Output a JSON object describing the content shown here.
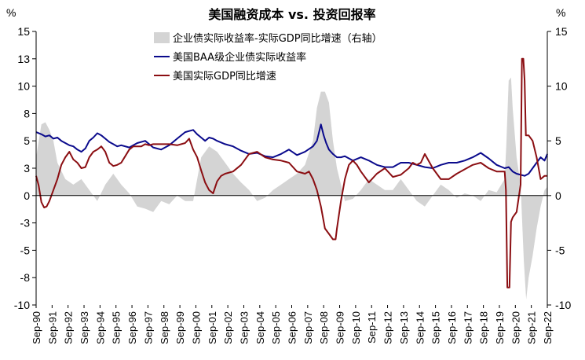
{
  "chart_data": {
    "type": "line",
    "title": "美国融资成本 vs. 投资回报率",
    "ylabel_left": "%",
    "ylabel_right": "%",
    "ylim_left": [
      -10,
      15
    ],
    "ylim_right": [
      -10,
      15
    ],
    "yticks_left": [
      {
        "value": 15,
        "label": "15"
      },
      {
        "value": 12.5,
        "label": "13"
      },
      {
        "value": 10,
        "label": "10"
      },
      {
        "value": 7.5,
        "label": "8"
      },
      {
        "value": 5,
        "label": "5"
      },
      {
        "value": 2.5,
        "label": "3"
      },
      {
        "value": 0,
        "label": "0"
      },
      {
        "value": -2.5,
        "label": "-3"
      },
      {
        "value": -5,
        "label": "-5"
      },
      {
        "value": -7.5,
        "label": "-8"
      },
      {
        "value": -10,
        "label": "-10"
      }
    ],
    "yticks_right": [
      {
        "value": 15,
        "label": "15"
      },
      {
        "value": 10,
        "label": "10"
      },
      {
        "value": 5,
        "label": "5"
      },
      {
        "value": 0,
        "label": "0"
      },
      {
        "value": -5,
        "label": "-5"
      },
      {
        "value": -10,
        "label": "-10"
      }
    ],
    "x_start": 1990.67,
    "x_end": 2022.67,
    "x_labels": [
      "Sep-90",
      "Sep-91",
      "Sep-92",
      "Sep-93",
      "Sep-94",
      "Sep-95",
      "Sep-96",
      "Sep-97",
      "Sep-98",
      "Sep-99",
      "Sep-00",
      "Sep-01",
      "Sep-02",
      "Sep-03",
      "Sep-04",
      "Sep-05",
      "Sep-06",
      "Sep-07",
      "Sep-08",
      "Sep-09",
      "Sep-10",
      "Sep-11",
      "Sep-12",
      "Sep-13",
      "Sep-14",
      "Sep-15",
      "Sep-16",
      "Sep-17",
      "Sep-18",
      "Sep-19",
      "Sep-20",
      "Sep-21",
      "Sep-22"
    ],
    "legend": [
      {
        "name": "企业债实际收益率-实际GDP同比增速（右轴）",
        "style": "area",
        "color": "#d4d4d4"
      },
      {
        "name": "美国BAA级企业债实际收益率",
        "style": "line",
        "color": "#0a0a8c"
      },
      {
        "name": "美国实际GDP同比增速",
        "style": "line",
        "color": "#8b0e12"
      }
    ],
    "series": [
      {
        "name": "企业债实际收益率-实际GDP同比增速（右轴）",
        "type": "area",
        "axis": "right",
        "color": "#d4d4d4",
        "x": [
          1990.67,
          1991.0,
          1991.25,
          1991.5,
          1991.75,
          1992.0,
          1992.5,
          1993.0,
          1993.5,
          1994.0,
          1994.5,
          1995.0,
          1995.5,
          1996.0,
          1996.5,
          1997.0,
          1997.5,
          1998.0,
          1998.5,
          1999.0,
          1999.5,
          2000.0,
          2000.5,
          2001.0,
          2001.5,
          2002.0,
          2002.5,
          2003.0,
          2003.5,
          2004.0,
          2004.5,
          2005.0,
          2005.5,
          2006.0,
          2006.5,
          2007.0,
          2007.5,
          2008.0,
          2008.25,
          2008.5,
          2008.75,
          2009.0,
          2009.25,
          2009.5,
          2009.75,
          2010.0,
          2010.5,
          2011.0,
          2011.5,
          2012.0,
          2012.5,
          2013.0,
          2013.5,
          2014.0,
          2014.5,
          2015.0,
          2015.5,
          2016.0,
          2016.5,
          2017.0,
          2017.5,
          2018.0,
          2018.5,
          2019.0,
          2019.5,
          2020.0,
          2020.1,
          2020.25,
          2020.4,
          2020.5,
          2020.75,
          2021.0,
          2021.2,
          2021.35,
          2021.5,
          2021.75,
          2022.0,
          2022.25,
          2022.5,
          2022.67
        ],
        "values": [
          3.5,
          6.5,
          6.7,
          6.0,
          5.0,
          3.0,
          1.5,
          1.0,
          1.5,
          0.5,
          -0.5,
          1.0,
          2.0,
          1.0,
          0.2,
          -1.0,
          -1.2,
          -1.5,
          -0.5,
          -0.8,
          0.0,
          -0.5,
          -0.5,
          3.5,
          4.5,
          4.0,
          3.0,
          2.0,
          1.2,
          0.5,
          -0.5,
          -0.2,
          0.5,
          1.0,
          1.5,
          2.0,
          2.8,
          5.0,
          8.0,
          9.5,
          9.5,
          8.5,
          5.0,
          2.5,
          1.0,
          -0.5,
          -0.3,
          0.5,
          1.5,
          1.0,
          0.5,
          0.5,
          1.5,
          0.5,
          -0.5,
          -1.0,
          0.0,
          1.0,
          0.5,
          -0.2,
          0.2,
          0.0,
          -0.5,
          0.5,
          0.3,
          1.5,
          4.5,
          10.5,
          10.8,
          8.0,
          3.5,
          1.0,
          -6.0,
          -9.5,
          -7.5,
          -5.5,
          -3.0,
          -1.0,
          0.5,
          0.8
        ]
      },
      {
        "name": "美国BAA级企业债实际收益率",
        "type": "line",
        "axis": "left",
        "color": "#0a0a8c",
        "x": [
          1990.67,
          1991.0,
          1991.25,
          1991.5,
          1991.75,
          1992.0,
          1992.25,
          1992.5,
          1992.75,
          1993.0,
          1993.25,
          1993.5,
          1993.75,
          1994.0,
          1994.25,
          1994.5,
          1994.75,
          1995.0,
          1995.25,
          1995.5,
          1995.75,
          1996.0,
          1996.5,
          1997.0,
          1997.5,
          1998.0,
          1998.5,
          1999.0,
          1999.5,
          2000.0,
          2000.25,
          2000.5,
          2000.75,
          2001.0,
          2001.25,
          2001.5,
          2001.75,
          2002.0,
          2002.5,
          2003.0,
          2003.5,
          2004.0,
          2004.5,
          2005.0,
          2005.5,
          2006.0,
          2006.5,
          2007.0,
          2007.5,
          2008.0,
          2008.25,
          2008.5,
          2008.67,
          2008.83,
          2009.0,
          2009.25,
          2009.5,
          2009.75,
          2010.0,
          2010.5,
          2011.0,
          2011.5,
          2012.0,
          2012.5,
          2013.0,
          2013.5,
          2014.0,
          2014.5,
          2015.0,
          2015.5,
          2016.0,
          2016.5,
          2017.0,
          2017.5,
          2018.0,
          2018.5,
          2019.0,
          2019.5,
          2020.0,
          2020.25,
          2020.5,
          2020.75,
          2021.0,
          2021.25,
          2021.5,
          2021.75,
          2022.0,
          2022.25,
          2022.5,
          2022.67
        ],
        "values": [
          5.8,
          5.6,
          5.4,
          5.5,
          5.2,
          5.3,
          5.0,
          4.8,
          4.6,
          4.5,
          4.2,
          4.0,
          4.3,
          5.0,
          5.3,
          5.7,
          5.5,
          5.2,
          4.9,
          4.7,
          4.5,
          4.6,
          4.4,
          4.8,
          5.0,
          4.4,
          4.2,
          4.6,
          5.2,
          5.8,
          5.9,
          6.0,
          5.6,
          5.3,
          5.0,
          5.3,
          5.2,
          5.0,
          4.7,
          4.5,
          4.1,
          3.8,
          3.9,
          3.6,
          3.5,
          3.8,
          4.2,
          3.7,
          4.0,
          4.5,
          5.0,
          6.5,
          5.5,
          4.8,
          4.2,
          3.8,
          3.5,
          3.5,
          3.6,
          3.2,
          3.5,
          3.2,
          2.8,
          2.6,
          2.6,
          3.0,
          3.0,
          2.8,
          2.6,
          2.5,
          2.8,
          3.0,
          3.0,
          3.2,
          3.5,
          3.9,
          3.4,
          2.8,
          2.5,
          2.6,
          2.2,
          2.0,
          1.9,
          1.8,
          2.0,
          2.5,
          3.0,
          3.5,
          3.2,
          3.8
        ]
      },
      {
        "name": "美国实际GDP同比增速",
        "type": "line",
        "axis": "left",
        "color": "#8b0e12",
        "x": [
          1990.67,
          1990.83,
          1991.0,
          1991.17,
          1991.33,
          1991.5,
          1991.75,
          1992.0,
          1992.25,
          1992.5,
          1992.75,
          1993.0,
          1993.25,
          1993.5,
          1993.75,
          1994.0,
          1994.25,
          1994.5,
          1994.75,
          1995.0,
          1995.25,
          1995.5,
          1995.75,
          1996.0,
          1996.25,
          1996.5,
          1996.75,
          1997.0,
          1997.25,
          1997.5,
          1997.75,
          1998.0,
          1998.5,
          1999.0,
          1999.5,
          2000.0,
          2000.25,
          2000.5,
          2000.75,
          2001.0,
          2001.25,
          2001.5,
          2001.75,
          2002.0,
          2002.25,
          2002.5,
          2003.0,
          2003.5,
          2004.0,
          2004.5,
          2005.0,
          2005.5,
          2006.0,
          2006.5,
          2007.0,
          2007.5,
          2007.75,
          2008.0,
          2008.25,
          2008.5,
          2008.75,
          2009.0,
          2009.25,
          2009.42,
          2009.5,
          2009.75,
          2010.0,
          2010.25,
          2010.5,
          2010.75,
          2011.0,
          2011.5,
          2012.0,
          2012.5,
          2013.0,
          2013.5,
          2014.0,
          2014.25,
          2014.5,
          2014.75,
          2015.0,
          2015.5,
          2016.0,
          2016.5,
          2017.0,
          2017.5,
          2018.0,
          2018.5,
          2019.0,
          2019.5,
          2020.0,
          2020.08,
          2020.17,
          2020.3,
          2020.4,
          2020.5,
          2020.75,
          2021.0,
          2021.08,
          2021.17,
          2021.25,
          2021.33,
          2021.5,
          2021.75,
          2022.0,
          2022.25,
          2022.5,
          2022.67
        ],
        "values": [
          1.8,
          0.9,
          -0.6,
          -1.1,
          -1.0,
          -0.5,
          0.5,
          1.5,
          2.8,
          3.5,
          4.0,
          3.3,
          3.0,
          2.5,
          2.6,
          3.5,
          4.0,
          4.2,
          4.5,
          4.0,
          3.0,
          2.7,
          2.8,
          3.0,
          3.6,
          4.2,
          4.5,
          4.5,
          4.5,
          4.7,
          4.6,
          4.7,
          4.7,
          4.7,
          4.6,
          4.8,
          5.2,
          4.2,
          3.5,
          2.3,
          1.2,
          0.5,
          0.2,
          1.3,
          1.8,
          2.0,
          2.2,
          2.8,
          3.8,
          4.0,
          3.5,
          3.3,
          3.2,
          3.0,
          2.2,
          2.0,
          2.2,
          1.5,
          0.5,
          -1.0,
          -3.0,
          -3.5,
          -4.0,
          -4.0,
          -3.0,
          -0.5,
          1.5,
          2.8,
          3.2,
          2.8,
          2.2,
          1.2,
          2.0,
          2.5,
          1.7,
          1.9,
          2.5,
          3.0,
          2.8,
          3.0,
          3.8,
          2.5,
          1.5,
          1.5,
          2.0,
          2.4,
          2.8,
          3.0,
          2.5,
          2.2,
          2.2,
          0.5,
          -8.4,
          -8.4,
          -2.4,
          -2.0,
          -1.5,
          1.0,
          12.5,
          12.5,
          10.5,
          5.5,
          5.5,
          5.0,
          3.5,
          1.5,
          1.8,
          1.8
        ]
      }
    ]
  }
}
